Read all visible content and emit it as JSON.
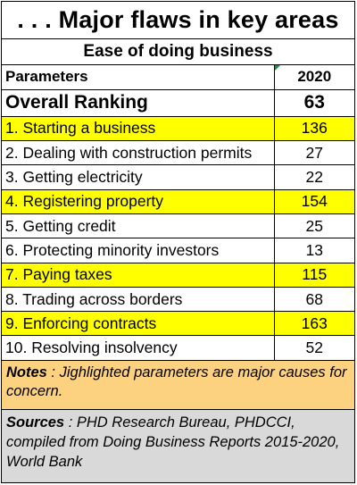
{
  "title": ". . . Major flaws in key areas",
  "subtitle": "Ease of doing business",
  "table": {
    "header": {
      "parameter": "Parameters",
      "year": "2020"
    },
    "overall": {
      "label": "Overall Ranking",
      "value": "63"
    },
    "rows": [
      {
        "label": "1. Starting a business",
        "value": "136",
        "highlight": true
      },
      {
        "label": "2. Dealing with construction permits",
        "value": "27",
        "highlight": false
      },
      {
        "label": "3. Getting electricity",
        "value": "22",
        "highlight": false
      },
      {
        "label": "4. Registering property",
        "value": "154",
        "highlight": true
      },
      {
        "label": "5. Getting credit",
        "value": "25",
        "highlight": false
      },
      {
        "label": "6. Protecting minority investors",
        "value": "13",
        "highlight": false
      },
      {
        "label": "7. Paying taxes",
        "value": "115",
        "highlight": true
      },
      {
        "label": "8. Trading across borders",
        "value": "68",
        "highlight": false
      },
      {
        "label": "9. Enforcing contracts",
        "value": "163",
        "highlight": true
      },
      {
        "label": "10. Resolving insolvency",
        "value": "52",
        "highlight": false
      }
    ]
  },
  "notes": {
    "label": "Notes",
    "text": " : Jighlighted parameters are major causes for concern."
  },
  "sources": {
    "label": "Sources",
    "text": " : PHD Research Bureau, PHDCCI, compiled from Doing Business Reports 2015-2020, World Bank"
  },
  "colors": {
    "highlight": "#ffff00",
    "notes_bg": "#fcd280",
    "sources_bg": "#d9d9d9"
  },
  "chart_data": {
    "type": "table",
    "title": ". . . Major flaws in key areas",
    "subtitle": "Ease of doing business",
    "columns": [
      "Parameters",
      "2020"
    ],
    "rows": [
      [
        "Overall Ranking",
        63
      ],
      [
        "1. Starting a business",
        136
      ],
      [
        "2. Dealing with construction permits",
        27
      ],
      [
        "3. Getting electricity",
        22
      ],
      [
        "4. Registering property",
        154
      ],
      [
        "5. Getting credit",
        25
      ],
      [
        "6. Protecting minority investors",
        13
      ],
      [
        "7. Paying taxes",
        115
      ],
      [
        "8. Trading across borders",
        68
      ],
      [
        "9. Enforcing contracts",
        163
      ],
      [
        "10. Resolving insolvency",
        52
      ]
    ],
    "highlighted_rows": [
      "1. Starting a business",
      "4. Registering property",
      "7. Paying taxes",
      "9. Enforcing contracts"
    ]
  }
}
